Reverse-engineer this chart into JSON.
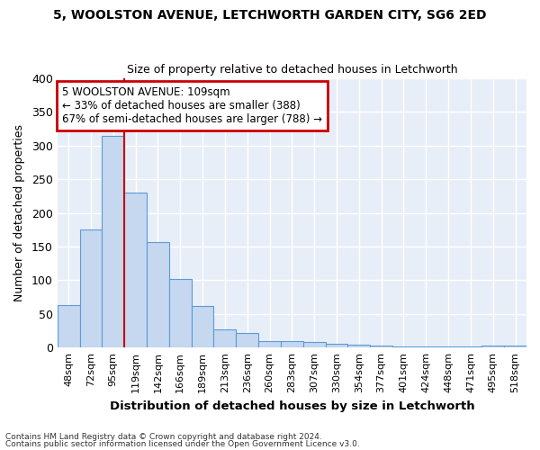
{
  "title1": "5, WOOLSTON AVENUE, LETCHWORTH GARDEN CITY, SG6 2ED",
  "title2": "Size of property relative to detached houses in Letchworth",
  "xlabel": "Distribution of detached houses by size in Letchworth",
  "ylabel": "Number of detached properties",
  "categories": [
    "48sqm",
    "72sqm",
    "95sqm",
    "119sqm",
    "142sqm",
    "166sqm",
    "189sqm",
    "213sqm",
    "236sqm",
    "260sqm",
    "283sqm",
    "307sqm",
    "330sqm",
    "354sqm",
    "377sqm",
    "401sqm",
    "424sqm",
    "448sqm",
    "471sqm",
    "495sqm",
    "518sqm"
  ],
  "values": [
    63,
    175,
    315,
    230,
    157,
    102,
    62,
    27,
    21,
    9,
    10,
    8,
    6,
    4,
    3,
    2,
    2,
    2,
    1,
    3,
    3
  ],
  "bar_color": "#c5d8f0",
  "bar_edge_color": "#5b9bd5",
  "fig_bg_color": "#ffffff",
  "plot_bg_color": "#e8eef8",
  "grid_color": "#ffffff",
  "vline_color": "#cc0000",
  "annotation_line1": "5 WOOLSTON AVENUE: 109sqm",
  "annotation_line2": "← 33% of detached houses are smaller (388)",
  "annotation_line3": "67% of semi-detached houses are larger (788) →",
  "annotation_box_edge": "#cc0000",
  "footer1": "Contains HM Land Registry data © Crown copyright and database right 2024.",
  "footer2": "Contains public sector information licensed under the Open Government Licence v3.0.",
  "ylim": [
    0,
    400
  ],
  "yticks": [
    0,
    50,
    100,
    150,
    200,
    250,
    300,
    350,
    400
  ],
  "vline_pos": 2.5
}
